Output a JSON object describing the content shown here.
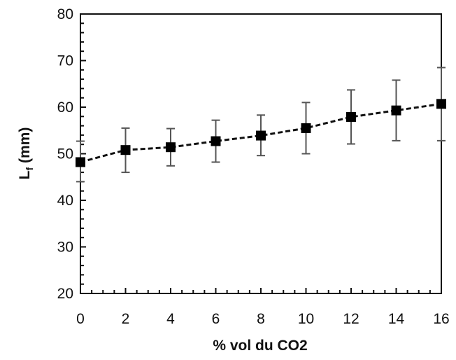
{
  "chart_data": {
    "type": "line",
    "title": "",
    "xlabel": "% vol du CO2",
    "ylabel_main": "L",
    "ylabel_sub": "f",
    "ylabel_unit": " (mm)",
    "xlim": [
      0,
      16
    ],
    "ylim": [
      20,
      80
    ],
    "x_ticks": [
      0,
      2,
      4,
      6,
      8,
      10,
      12,
      14,
      16
    ],
    "y_ticks": [
      20,
      30,
      40,
      50,
      60,
      70,
      80
    ],
    "grid": false,
    "legend": "none",
    "marker": "square",
    "line_style": "dashed",
    "color": "#000000",
    "series": [
      {
        "x": [
          0,
          2,
          4,
          6,
          8,
          10,
          12,
          14,
          16
        ],
        "y": [
          48.2,
          50.8,
          51.4,
          52.7,
          53.9,
          55.5,
          57.9,
          59.3,
          60.7
        ],
        "err_low": [
          44.0,
          46.0,
          47.4,
          48.2,
          49.6,
          50.0,
          52.1,
          52.8,
          52.8
        ],
        "err_high": [
          52.7,
          55.5,
          55.4,
          57.2,
          58.3,
          61.0,
          63.7,
          65.8,
          68.5
        ]
      }
    ]
  }
}
